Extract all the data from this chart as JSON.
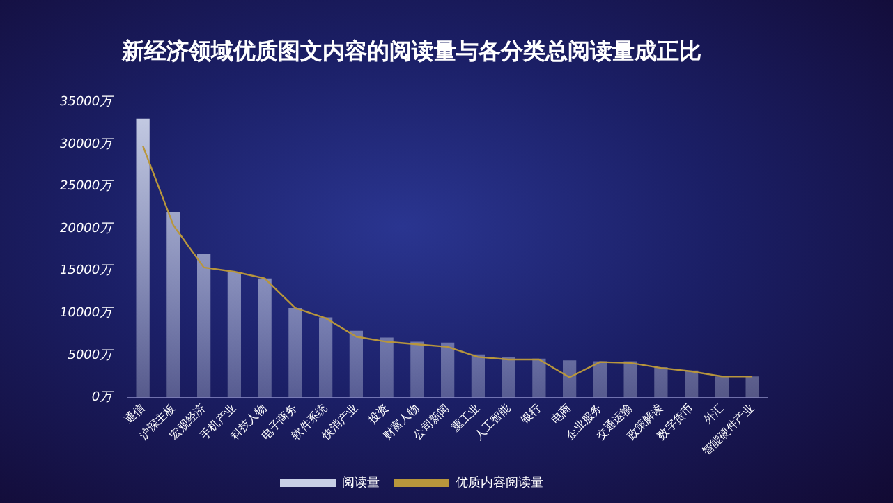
{
  "chart_data": {
    "type": "bar",
    "title": "新经济领域优质图文内容的阅读量与各分类总阅读量成正比",
    "categories": [
      "通信",
      "沪深主板",
      "宏观经济",
      "手机产业",
      "科技人物",
      "电子商务",
      "软件系统",
      "快消产业",
      "投资",
      "财富人物",
      "公司新闻",
      "重工业",
      "人工智能",
      "银行",
      "电商",
      "企业服务",
      "交通运输",
      "政策解读",
      "数字货币",
      "外汇",
      "智能硬件产业"
    ],
    "series": [
      {
        "name": "阅读量",
        "color": "#c8cfe6",
        "values": [
          33000,
          22000,
          17000,
          14900,
          14100,
          10600,
          9500,
          7900,
          7100,
          6600,
          6500,
          5100,
          4800,
          4600,
          4400,
          4300,
          4300,
          3600,
          3200,
          2500,
          2500
        ]
      },
      {
        "name": "优质内容阅读量",
        "type": "line",
        "color": "#b8963c",
        "values": [
          29800,
          20400,
          15400,
          14900,
          14100,
          10600,
          9400,
          7200,
          6600,
          6300,
          6000,
          4800,
          4500,
          4500,
          2400,
          4200,
          4100,
          3500,
          3100,
          2500,
          2500
        ]
      }
    ],
    "ylim": [
      0,
      35000
    ],
    "yticks": [
      {
        "value": 0,
        "label": "0万"
      },
      {
        "value": 5000,
        "label": "5000万"
      },
      {
        "value": 10000,
        "label": "10000万"
      },
      {
        "value": 15000,
        "label": "15000万"
      },
      {
        "value": 20000,
        "label": "20000万"
      },
      {
        "value": 25000,
        "label": "25000万"
      },
      {
        "value": 30000,
        "label": "30000万"
      },
      {
        "value": 35000,
        "label": "35000万"
      }
    ],
    "grid": false,
    "legend": "bottom",
    "marker": "none"
  }
}
